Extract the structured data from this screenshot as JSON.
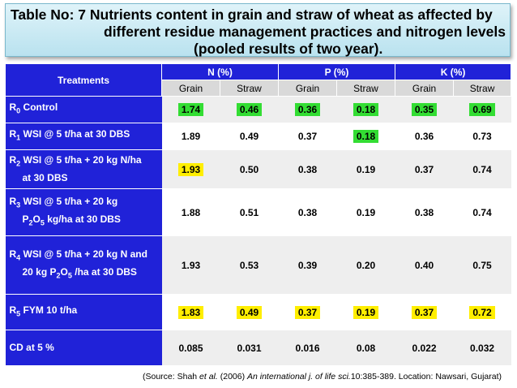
{
  "title": {
    "line1": "Table No: 7 Nutrients content in grain and straw of wheat as affected by",
    "line2": "different residue management practices and nitrogen levels",
    "line3": "(pooled results of two year)."
  },
  "table": {
    "treatments_header": "Treatments",
    "groups": [
      "N (%)",
      "P (%)",
      "K (%)"
    ],
    "subheaders": [
      "Grain",
      "Straw",
      "Grain",
      "Straw",
      "Grain",
      "Straw"
    ],
    "rows": [
      {
        "r": "R",
        "s": "0",
        "label": " Control",
        "values": [
          "1.74",
          "0.46",
          "0.36",
          "0.18",
          "0.35",
          "0.69"
        ]
      },
      {
        "r": "R",
        "s": "1",
        "label": " WSI @ 5 t/ha at 30 DBS",
        "values": [
          "1.89",
          "0.49",
          "0.37",
          "0.18",
          "0.36",
          "0.73"
        ]
      },
      {
        "r": "R",
        "s": "2",
        "label": " WSI @ 5 t/ha + 20 kg N/ha",
        "label2": "at 30 DBS",
        "values": [
          "1.93",
          "0.50",
          "0.38",
          "0.19",
          "0.37",
          "0.74"
        ]
      },
      {
        "r": "R",
        "s": "3",
        "label": " WSI @ 5 t/ha + 20 kg",
        "label2a": "P",
        "label2s": "2",
        "label2b": "O",
        "label2s2": "5",
        "label2c": " kg/ha at 30 DBS",
        "values": [
          "1.88",
          "0.51",
          "0.38",
          "0.19",
          "0.38",
          "0.74"
        ]
      },
      {
        "r": "R",
        "s": "4",
        "label": " WSI @ 5 t/ha + 20 kg N and",
        "label2a": "20 kg  P",
        "label2s": "2",
        "label2b": "O",
        "label2s2": "5",
        "label2c": " /ha at 30 DBS",
        "values": [
          "1.93",
          "0.53",
          "0.39",
          "0.20",
          "0.40",
          "0.75"
        ]
      },
      {
        "r": "R",
        "s": "5",
        "label": " FYM 10 t/ha",
        "values": [
          "1.83",
          "0.49",
          "0.37",
          "0.19",
          "0.37",
          "0.72"
        ]
      },
      {
        "label_plain": "CD at 5 %",
        "values": [
          "0.085",
          "0.031",
          "0.016",
          "0.08",
          "0.022",
          "0.032"
        ]
      }
    ]
  },
  "source": {
    "pre": "(Source: Shah ",
    "etal": "et al.",
    "mid": " (2006) ",
    "journal": "An international j. of life sci.",
    "post": "10:385-389. Location: Nawsari, Gujarat)"
  },
  "colors": {
    "header_blue": "#2022d8",
    "highlight_green": "#33dd33",
    "highlight_yellow": "#ffee00"
  }
}
